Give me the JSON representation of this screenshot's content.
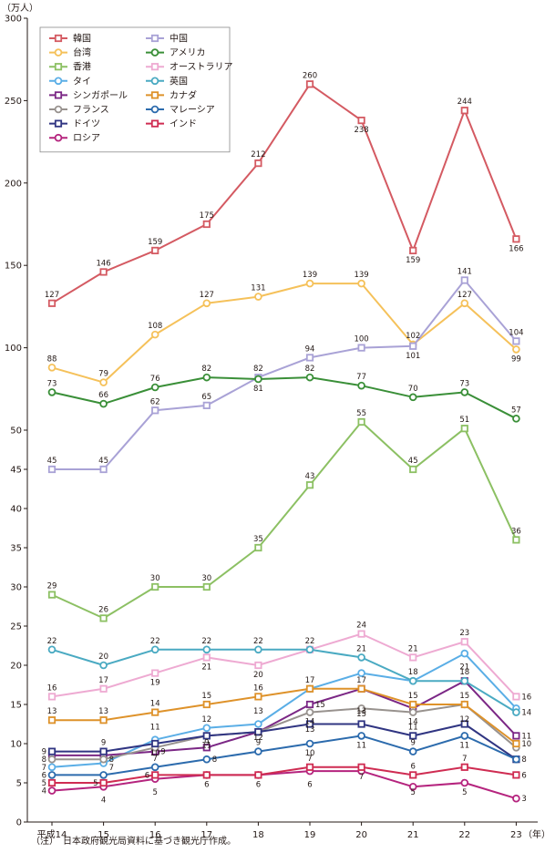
{
  "chart_data": {
    "type": "line",
    "unit_label": "（万人）",
    "year_unit_label": "（年）",
    "categories": [
      "平成14",
      "15",
      "16",
      "17",
      "18",
      "19",
      "20",
      "21",
      "22",
      "23"
    ],
    "y_ticks": [
      0,
      5,
      10,
      15,
      20,
      25,
      30,
      35,
      40,
      45,
      50,
      100,
      150,
      200,
      250,
      300
    ],
    "axis_note": "broken y-axis: 0–50 linear in steps of 5, then 50–300 compressed in steps of 50",
    "grid": false,
    "legend_position": "top-left",
    "series": [
      {
        "name": "韓国",
        "color": "#d45a62",
        "marker": "square",
        "values": [
          127,
          146,
          159,
          175,
          212,
          260,
          238,
          159,
          244,
          166
        ]
      },
      {
        "name": "台湾",
        "color": "#f5c15a",
        "marker": "circle",
        "values": [
          88,
          79,
          108,
          127,
          131,
          139,
          139,
          102,
          127,
          99
        ]
      },
      {
        "name": "香港",
        "color": "#8cc063",
        "marker": "square",
        "values": [
          29,
          26,
          30,
          30,
          35,
          43,
          55,
          45,
          51,
          36
        ]
      },
      {
        "name": "タイ",
        "color": "#5aaee6",
        "marker": "circle",
        "values": [
          7,
          7.5,
          10.5,
          12,
          12.5,
          17,
          19,
          18,
          21.5,
          14.5
        ]
      },
      {
        "name": "シンガポール",
        "color": "#7b2785",
        "marker": "square",
        "values": [
          8.5,
          8.5,
          9,
          9.5,
          11.5,
          15,
          17,
          14.5,
          18,
          11
        ]
      },
      {
        "name": "フランス",
        "color": "#98928e",
        "marker": "circle",
        "values": [
          8,
          8,
          9.5,
          11,
          11.5,
          14,
          14.5,
          14,
          15,
          9.5
        ]
      },
      {
        "name": "ドイツ",
        "color": "#303582",
        "marker": "square",
        "values": [
          9,
          9,
          10,
          11,
          11.5,
          12.5,
          12.5,
          11,
          12.5,
          8
        ]
      },
      {
        "name": "ロシア",
        "color": "#b5247e",
        "marker": "circle",
        "values": [
          4,
          4.5,
          5.5,
          6,
          6,
          6.5,
          6.5,
          4.5,
          5,
          3
        ]
      },
      {
        "name": "中国",
        "color": "#a9a2d6",
        "marker": "square",
        "values": [
          45,
          45,
          62,
          65,
          82,
          94,
          100,
          101,
          141,
          104
        ]
      },
      {
        "name": "アメリカ",
        "color": "#3a8f38",
        "marker": "circle",
        "values": [
          73,
          66,
          76,
          82,
          81,
          82,
          77,
          70,
          73,
          57
        ]
      },
      {
        "name": "オーストラリア",
        "color": "#eeaad2",
        "marker": "square",
        "values": [
          16,
          17,
          19,
          21,
          20,
          22,
          24,
          21,
          23,
          16
        ]
      },
      {
        "name": "英国",
        "color": "#4aaac2",
        "marker": "circle",
        "values": [
          22,
          20,
          22,
          22,
          22,
          22,
          21,
          18,
          18,
          14
        ]
      },
      {
        "name": "カナダ",
        "color": "#de922a",
        "marker": "square",
        "values": [
          13,
          13,
          14,
          15,
          16,
          17,
          17,
          15,
          15,
          10
        ]
      },
      {
        "name": "マレーシア",
        "color": "#2c6bad",
        "marker": "circle",
        "values": [
          6,
          6,
          7,
          8,
          9,
          10,
          11,
          9,
          11,
          8
        ]
      },
      {
        "name": "インド",
        "color": "#cf2c52",
        "marker": "square",
        "values": [
          5,
          5,
          6,
          6,
          6,
          7,
          7,
          6,
          7,
          6
        ]
      }
    ],
    "data_labels": [
      {
        "text": "127",
        "x": 0,
        "y": 127,
        "pos": "above"
      },
      {
        "text": "146",
        "x": 1,
        "y": 146,
        "pos": "above"
      },
      {
        "text": "159",
        "x": 2,
        "y": 159,
        "pos": "above"
      },
      {
        "text": "175",
        "x": 3,
        "y": 175,
        "pos": "above"
      },
      {
        "text": "212",
        "x": 4,
        "y": 212,
        "pos": "above"
      },
      {
        "text": "260",
        "x": 5,
        "y": 260,
        "pos": "above"
      },
      {
        "text": "238",
        "x": 6,
        "y": 238,
        "pos": "below"
      },
      {
        "text": "159",
        "x": 7,
        "y": 159,
        "pos": "below"
      },
      {
        "text": "244",
        "x": 8,
        "y": 244,
        "pos": "above"
      },
      {
        "text": "166",
        "x": 9,
        "y": 166,
        "pos": "below"
      },
      {
        "text": "88",
        "x": 0,
        "y": 88,
        "pos": "above"
      },
      {
        "text": "79",
        "x": 1,
        "y": 79,
        "pos": "above"
      },
      {
        "text": "108",
        "x": 2,
        "y": 108,
        "pos": "above"
      },
      {
        "text": "127",
        "x": 3,
        "y": 127,
        "pos": "above"
      },
      {
        "text": "131",
        "x": 4,
        "y": 131,
        "pos": "above"
      },
      {
        "text": "139",
        "x": 5,
        "y": 139,
        "pos": "above"
      },
      {
        "text": "139",
        "x": 6,
        "y": 139,
        "pos": "above"
      },
      {
        "text": "102",
        "x": 7,
        "y": 102,
        "pos": "above"
      },
      {
        "text": "127",
        "x": 8,
        "y": 127,
        "pos": "above"
      },
      {
        "text": "99",
        "x": 9,
        "y": 99,
        "pos": "below"
      },
      {
        "text": "141",
        "x": 8,
        "y": 141,
        "pos": "above"
      },
      {
        "text": "104",
        "x": 9,
        "y": 104,
        "pos": "above"
      },
      {
        "text": "101",
        "x": 7,
        "y": 101,
        "pos": "below"
      },
      {
        "text": "100",
        "x": 6,
        "y": 100,
        "pos": "above"
      },
      {
        "text": "94",
        "x": 5,
        "y": 94,
        "pos": "above"
      },
      {
        "text": "81",
        "x": 4,
        "y": 81,
        "pos": "below"
      },
      {
        "text": "73",
        "x": 0,
        "y": 73,
        "pos": "above"
      },
      {
        "text": "66",
        "x": 1,
        "y": 66,
        "pos": "above"
      },
      {
        "text": "76",
        "x": 2,
        "y": 76,
        "pos": "above"
      },
      {
        "text": "82",
        "x": 3,
        "y": 82,
        "pos": "above"
      },
      {
        "text": "82",
        "x": 4,
        "y": 82,
        "pos": "above"
      },
      {
        "text": "82",
        "x": 5,
        "y": 82,
        "pos": "above"
      },
      {
        "text": "77",
        "x": 6,
        "y": 77,
        "pos": "above"
      },
      {
        "text": "70",
        "x": 7,
        "y": 70,
        "pos": "above"
      },
      {
        "text": "73",
        "x": 8,
        "y": 73,
        "pos": "above"
      },
      {
        "text": "57",
        "x": 9,
        "y": 57,
        "pos": "above"
      },
      {
        "text": "62",
        "x": 2,
        "y": 62,
        "pos": "above"
      },
      {
        "text": "65",
        "x": 3,
        "y": 65,
        "pos": "above"
      },
      {
        "text": "45",
        "x": 0,
        "y": 45,
        "pos": "above"
      },
      {
        "text": "45",
        "x": 1,
        "y": 45,
        "pos": "above"
      },
      {
        "text": "29",
        "x": 0,
        "y": 29,
        "pos": "above"
      },
      {
        "text": "26",
        "x": 1,
        "y": 26,
        "pos": "above"
      },
      {
        "text": "30",
        "x": 2,
        "y": 30,
        "pos": "above"
      },
      {
        "text": "30",
        "x": 3,
        "y": 30,
        "pos": "above"
      },
      {
        "text": "35",
        "x": 4,
        "y": 35,
        "pos": "above"
      },
      {
        "text": "43",
        "x": 5,
        "y": 43,
        "pos": "above"
      },
      {
        "text": "55",
        "x": 6,
        "y": 55,
        "pos": "above"
      },
      {
        "text": "45",
        "x": 7,
        "y": 45,
        "pos": "above"
      },
      {
        "text": "51",
        "x": 8,
        "y": 51,
        "pos": "above"
      },
      {
        "text": "36",
        "x": 9,
        "y": 36,
        "pos": "above"
      },
      {
        "text": "22",
        "x": 0,
        "y": 22,
        "pos": "above"
      },
      {
        "text": "20",
        "x": 1,
        "y": 20,
        "pos": "above"
      },
      {
        "text": "22",
        "x": 2,
        "y": 22,
        "pos": "above"
      },
      {
        "text": "22",
        "x": 3,
        "y": 22,
        "pos": "above"
      },
      {
        "text": "22",
        "x": 4,
        "y": 22,
        "pos": "above"
      },
      {
        "text": "22",
        "x": 5,
        "y": 22,
        "pos": "above"
      },
      {
        "text": "24",
        "x": 6,
        "y": 24,
        "pos": "above"
      },
      {
        "text": "21",
        "x": 7,
        "y": 21,
        "pos": "above"
      },
      {
        "text": "23",
        "x": 8,
        "y": 23,
        "pos": "above"
      },
      {
        "text": "16",
        "x": 0,
        "y": 16,
        "pos": "above"
      },
      {
        "text": "17",
        "x": 1,
        "y": 17,
        "pos": "above"
      },
      {
        "text": "19",
        "x": 2,
        "y": 19,
        "pos": "below"
      },
      {
        "text": "21",
        "x": 3,
        "y": 21,
        "pos": "below"
      },
      {
        "text": "20",
        "x": 4,
        "y": 20,
        "pos": "below"
      },
      {
        "text": "21",
        "x": 6,
        "y": 21,
        "pos": "above"
      },
      {
        "text": "16",
        "x": 9,
        "y": 16,
        "pos": "right"
      },
      {
        "text": "13",
        "x": 0,
        "y": 13,
        "pos": "above"
      },
      {
        "text": "13",
        "x": 1,
        "y": 13,
        "pos": "above"
      },
      {
        "text": "14",
        "x": 2,
        "y": 14,
        "pos": "above"
      },
      {
        "text": "15",
        "x": 3,
        "y": 15,
        "pos": "above"
      },
      {
        "text": "16",
        "x": 4,
        "y": 16,
        "pos": "above"
      },
      {
        "text": "17",
        "x": 5,
        "y": 17,
        "pos": "above"
      },
      {
        "text": "17",
        "x": 6,
        "y": 17,
        "pos": "above"
      },
      {
        "text": "15",
        "x": 7,
        "y": 15,
        "pos": "above"
      },
      {
        "text": "18",
        "x": 7,
        "y": 18,
        "pos": "above"
      },
      {
        "text": "18",
        "x": 8,
        "y": 18,
        "pos": "above"
      },
      {
        "text": "21",
        "x": 8,
        "y": 21,
        "pos": "below"
      },
      {
        "text": "14",
        "x": 9,
        "y": 14,
        "pos": "right"
      },
      {
        "text": "11",
        "x": 2,
        "y": 11,
        "pos": "above"
      },
      {
        "text": "12",
        "x": 3,
        "y": 12,
        "pos": "above"
      },
      {
        "text": "13",
        "x": 4,
        "y": 13,
        "pos": "above"
      },
      {
        "text": "15",
        "x": 5,
        "y": 15,
        "pos": "right"
      },
      {
        "text": "14",
        "x": 5,
        "y": 14,
        "pos": "below"
      },
      {
        "text": "15",
        "x": 6,
        "y": 15,
        "pos": "below"
      },
      {
        "text": "14",
        "x": 7,
        "y": 14,
        "pos": "below"
      },
      {
        "text": "15",
        "x": 8,
        "y": 15,
        "pos": "above"
      },
      {
        "text": "9",
        "x": 0,
        "y": 9,
        "pos": "left"
      },
      {
        "text": "8",
        "x": 0,
        "y": 8,
        "pos": "left"
      },
      {
        "text": "7",
        "x": 0,
        "y": 7,
        "pos": "left"
      },
      {
        "text": "6",
        "x": 0,
        "y": 6,
        "pos": "left"
      },
      {
        "text": "5",
        "x": 0,
        "y": 5,
        "pos": "left"
      },
      {
        "text": "4",
        "x": 0,
        "y": 4,
        "pos": "left"
      },
      {
        "text": "9",
        "x": 1,
        "y": 9,
        "pos": "above"
      },
      {
        "text": "8",
        "x": 1,
        "y": 8,
        "pos": "right"
      },
      {
        "text": "7",
        "x": 1,
        "y": 7,
        "pos": "right"
      },
      {
        "text": "5",
        "x": 1,
        "y": 5,
        "pos": "left"
      },
      {
        "text": "4",
        "x": 1,
        "y": 4,
        "pos": "below"
      },
      {
        "text": "10",
        "x": 2,
        "y": 10,
        "pos": "below"
      },
      {
        "text": "9",
        "x": 2,
        "y": 9,
        "pos": "right"
      },
      {
        "text": "7",
        "x": 2,
        "y": 7,
        "pos": "above"
      },
      {
        "text": "6",
        "x": 2,
        "y": 6,
        "pos": "left"
      },
      {
        "text": "5",
        "x": 2,
        "y": 5,
        "pos": "below"
      },
      {
        "text": "9",
        "x": 3,
        "y": 9,
        "pos": "above"
      },
      {
        "text": "11",
        "x": 3,
        "y": 11,
        "pos": "below"
      },
      {
        "text": "8",
        "x": 3,
        "y": 8,
        "pos": "right"
      },
      {
        "text": "6",
        "x": 3,
        "y": 6,
        "pos": "below"
      },
      {
        "text": "12",
        "x": 4,
        "y": 12,
        "pos": "below"
      },
      {
        "text": "9",
        "x": 4,
        "y": 9,
        "pos": "above"
      },
      {
        "text": "6",
        "x": 4,
        "y": 6,
        "pos": "below"
      },
      {
        "text": "13",
        "x": 5,
        "y": 13,
        "pos": "below"
      },
      {
        "text": "10",
        "x": 5,
        "y": 10,
        "pos": "below"
      },
      {
        "text": "7",
        "x": 5,
        "y": 7,
        "pos": "above"
      },
      {
        "text": "6",
        "x": 5,
        "y": 6,
        "pos": "below"
      },
      {
        "text": "13",
        "x": 6,
        "y": 13,
        "pos": "above"
      },
      {
        "text": "11",
        "x": 6,
        "y": 11,
        "pos": "below"
      },
      {
        "text": "7",
        "x": 6,
        "y": 7,
        "pos": "below"
      },
      {
        "text": "11",
        "x": 7,
        "y": 11,
        "pos": "above"
      },
      {
        "text": "9",
        "x": 7,
        "y": 9,
        "pos": "above"
      },
      {
        "text": "6",
        "x": 7,
        "y": 6,
        "pos": "above"
      },
      {
        "text": "5",
        "x": 7,
        "y": 5,
        "pos": "below"
      },
      {
        "text": "12",
        "x": 8,
        "y": 12,
        "pos": "above"
      },
      {
        "text": "11",
        "x": 8,
        "y": 11,
        "pos": "below"
      },
      {
        "text": "7",
        "x": 8,
        "y": 7,
        "pos": "above"
      },
      {
        "text": "5",
        "x": 8,
        "y": 5,
        "pos": "below"
      },
      {
        "text": "11",
        "x": 9,
        "y": 11,
        "pos": "right"
      },
      {
        "text": "10",
        "x": 9,
        "y": 10,
        "pos": "right"
      },
      {
        "text": "8",
        "x": 9,
        "y": 8,
        "pos": "right"
      },
      {
        "text": "6",
        "x": 9,
        "y": 6,
        "pos": "right"
      },
      {
        "text": "3",
        "x": 9,
        "y": 3,
        "pos": "right"
      }
    ]
  },
  "note": "（注）　日本政府観光局資料に基づき観光庁作成。"
}
